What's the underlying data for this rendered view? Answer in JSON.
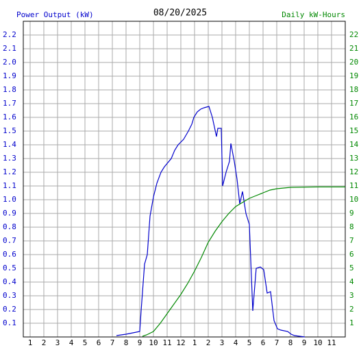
{
  "chart_data": {
    "type": "line",
    "title": "08/20/2025",
    "y_label": "Power Output (kW)",
    "y2_label": "Daily kW-Hours",
    "xlim": [
      0.5,
      24
    ],
    "xticks": [
      1,
      2,
      3,
      4,
      5,
      6,
      7,
      8,
      9,
      10,
      11,
      12,
      {
        "value": 13,
        "label": "1"
      },
      {
        "value": 14,
        "label": "2"
      },
      {
        "value": 15,
        "label": "3"
      },
      {
        "value": 16,
        "label": "4"
      },
      {
        "value": 17,
        "label": "5"
      },
      {
        "value": 18,
        "label": "6"
      },
      {
        "value": 19,
        "label": "7"
      },
      {
        "value": 20,
        "label": "8"
      },
      {
        "value": 21,
        "label": "9"
      },
      {
        "value": 22,
        "label": "10"
      },
      {
        "value": 23,
        "label": "11"
      }
    ],
    "ylim": [
      0,
      2.3
    ],
    "yticks": [
      0.1,
      0.2,
      0.3,
      0.4,
      0.5,
      0.6,
      0.7,
      0.8,
      0.9,
      {
        "value": 1,
        "label": "1.0"
      },
      1.1,
      1.2,
      1.3,
      1.4,
      1.5,
      1.6,
      1.7,
      1.8,
      1.9,
      {
        "value": 2,
        "label": "2.0"
      },
      2.1,
      2.2
    ],
    "y2lim": [
      0,
      23
    ],
    "y2ticks": [
      1,
      2,
      3,
      4,
      5,
      6,
      7,
      8,
      9,
      10,
      11,
      12,
      13,
      14,
      15,
      16,
      17,
      18,
      19,
      20,
      21,
      22
    ],
    "grid": true,
    "series": [
      {
        "name": "Power Output (kW)",
        "color": "#0000cc",
        "axis": "y",
        "x": [
          7.3,
          8.0,
          8.5,
          9.0,
          9.1,
          9.35,
          9.55,
          9.75,
          10.0,
          10.25,
          10.55,
          10.8,
          11.3,
          11.55,
          11.8,
          12.2,
          12.55,
          12.8,
          12.95,
          13.2,
          13.45,
          13.7,
          14.05,
          14.3,
          14.6,
          14.7,
          14.95,
          15.05,
          15.3,
          15.55,
          15.65,
          15.9,
          16.1,
          16.3,
          16.5,
          16.75,
          17.0,
          17.25,
          17.5,
          17.8,
          18.05,
          18.3,
          18.55,
          18.8,
          19.05,
          19.3,
          19.8,
          20.05,
          20.3,
          21.05
        ],
        "values": [
          0.01,
          0.02,
          0.03,
          0.04,
          0.19,
          0.53,
          0.6,
          0.88,
          1.02,
          1.12,
          1.2,
          1.24,
          1.3,
          1.36,
          1.4,
          1.44,
          1.5,
          1.55,
          1.6,
          1.64,
          1.66,
          1.67,
          1.68,
          1.6,
          1.46,
          1.52,
          1.52,
          1.1,
          1.2,
          1.28,
          1.41,
          1.28,
          1.15,
          0.97,
          1.06,
          0.9,
          0.82,
          0.19,
          0.5,
          0.51,
          0.49,
          0.32,
          0.33,
          0.12,
          0.06,
          0.05,
          0.04,
          0.02,
          0.01,
          0
        ]
      },
      {
        "name": "Daily kW-Hours",
        "color": "#008800",
        "axis": "y2",
        "x": [
          9.2,
          9.5,
          10,
          10.5,
          11,
          11.5,
          12,
          12.5,
          13,
          13.5,
          14,
          14.5,
          15,
          15.5,
          16,
          16.5,
          17,
          17.5,
          18,
          18.5,
          19,
          20,
          21,
          22,
          24
        ],
        "values": [
          0.05,
          0.15,
          0.4,
          1.0,
          1.7,
          2.4,
          3.1,
          3.9,
          4.8,
          5.8,
          6.9,
          7.7,
          8.4,
          9.0,
          9.5,
          9.8,
          10.1,
          10.3,
          10.5,
          10.7,
          10.8,
          10.9,
          10.92,
          10.93,
          10.93
        ]
      }
    ]
  }
}
